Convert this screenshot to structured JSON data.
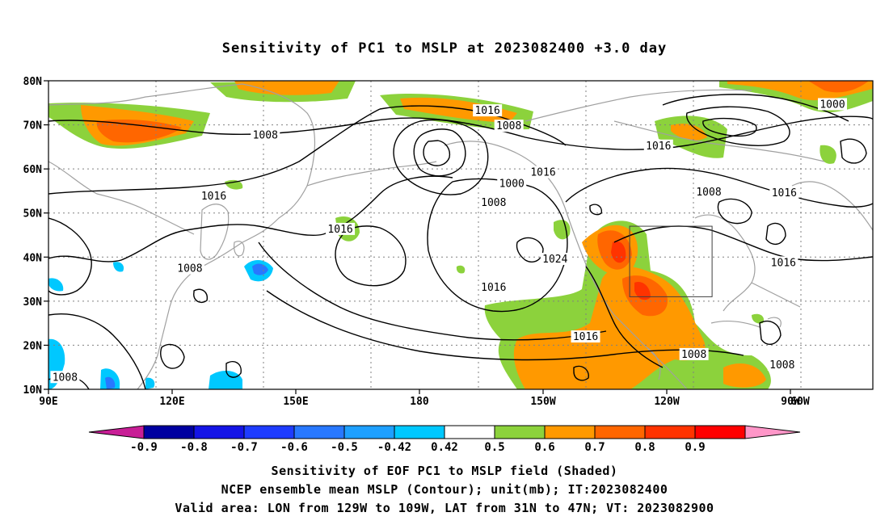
{
  "title": "Sensitivity of PC1 to MSLP at 2023082400 +3.0 day",
  "footer": {
    "line1": "Sensitivity of EOF PC1 to MSLP field (Shaded)",
    "line2": "NCEP ensemble mean MSLP (Contour); unit(mb); IT:2023082400",
    "line3": "Valid area: LON from 129W to 109W, LAT from 31N to 47N; VT: 2023082900"
  },
  "map": {
    "lon_range": [
      90,
      290
    ],
    "lat_range": [
      10,
      80
    ],
    "lat_ticks": [
      {
        "lat": 80,
        "label": "80N"
      },
      {
        "lat": 70,
        "label": "70N"
      },
      {
        "lat": 60,
        "label": "60N"
      },
      {
        "lat": 50,
        "label": "50N"
      },
      {
        "lat": 40,
        "label": "40N"
      },
      {
        "lat": 30,
        "label": "30N"
      },
      {
        "lat": 20,
        "label": "20N"
      },
      {
        "lat": 10,
        "label": "10N"
      }
    ],
    "lon_ticks": [
      {
        "lon": 90,
        "label": "90E"
      },
      {
        "lon": 120,
        "label": "120E"
      },
      {
        "lon": 150,
        "label": "150E"
      },
      {
        "lon": 180,
        "label": "180"
      },
      {
        "lon": 210,
        "label": "150W"
      },
      {
        "lon": 240,
        "label": "120W"
      },
      {
        "lon": 270,
        "label": "90W"
      },
      {
        "lon": 300,
        "label": "60W"
      }
    ],
    "valid_box": {
      "lon_min": 231,
      "lon_max": 251,
      "lat_min": 31,
      "lat_max": 47
    },
    "contour_labels": [
      {
        "text": "1016",
        "lon": 196.5,
        "lat": 73.2
      },
      {
        "text": "1008",
        "lon": 201.7,
        "lat": 69.7
      },
      {
        "text": "1008",
        "lon": 142.6,
        "lat": 67.6
      },
      {
        "text": "1016",
        "lon": 238.0,
        "lat": 65.2
      },
      {
        "text": "1000",
        "lon": 202.4,
        "lat": 56.6
      },
      {
        "text": "1016",
        "lon": 210.0,
        "lat": 59.2
      },
      {
        "text": "1016",
        "lon": 130.1,
        "lat": 53.8
      },
      {
        "text": "1008",
        "lon": 198.0,
        "lat": 52.3
      },
      {
        "text": "1008",
        "lon": 250.2,
        "lat": 54.7
      },
      {
        "text": "1016",
        "lon": 268.5,
        "lat": 54.5
      },
      {
        "text": "1000",
        "lon": 280.2,
        "lat": 74.6
      },
      {
        "text": "1016",
        "lon": 160.8,
        "lat": 46.3
      },
      {
        "text": "1024",
        "lon": 212.9,
        "lat": 39.5
      },
      {
        "text": "1008",
        "lon": 124.3,
        "lat": 37.4
      },
      {
        "text": "1016",
        "lon": 198.0,
        "lat": 33.1
      },
      {
        "text": "1016",
        "lon": 268.3,
        "lat": 38.7
      },
      {
        "text": "1016",
        "lon": 220.3,
        "lat": 21.9
      },
      {
        "text": "1008",
        "lon": 246.6,
        "lat": 17.9
      },
      {
        "text": "1008",
        "lon": 268.0,
        "lat": 15.5
      },
      {
        "text": "1008",
        "lon": 94.0,
        "lat": 12.7
      }
    ]
  },
  "colorbar": {
    "labels": [
      "-0.9",
      "-0.8",
      "-0.7",
      "-0.6",
      "-0.5",
      "-0.42",
      "0.42",
      "0.5",
      "0.6",
      "0.7",
      "0.8",
      "0.9"
    ],
    "colors": [
      "#0000a0",
      "#1414e6",
      "#1e3cff",
      "#2878ff",
      "#1ea0ff",
      "#00c8ff",
      "#ffffff",
      "#8cd23c",
      "#ff9900",
      "#ff6600",
      "#ff3300",
      "#ff0000"
    ],
    "low_end_color": "#c81e96",
    "high_end_color": "#ff96c8"
  },
  "colors": {
    "contour": "#000000",
    "coastline": "#a0a0a0",
    "grid": "#808080"
  }
}
